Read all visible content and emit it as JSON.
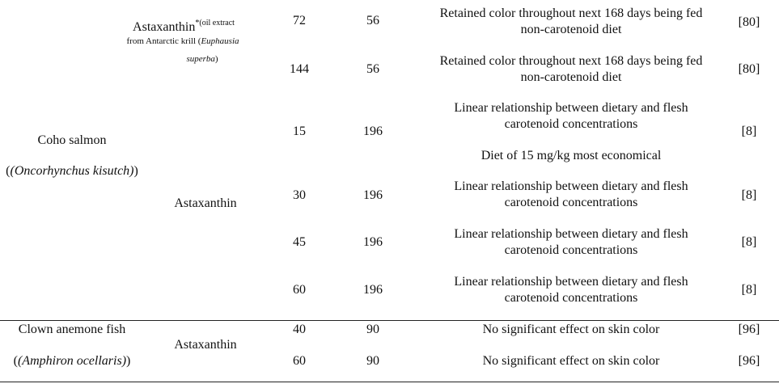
{
  "g1": {
    "species_line1": "Coho salmon",
    "species_line2": "(Oncorhynchus kisutch)",
    "pig1_name": "Astaxanthin",
    "pig1_sup": "*(oil extract",
    "pig1_note1": "from Antarctic krill (",
    "pig1_note1_it": "Euphausia",
    "pig1_note2_it": "superba",
    "pig1_note2_tail": ")",
    "pig2_name": "Astaxanthin",
    "rows": [
      {
        "dose": "72",
        "days": "56",
        "res1": "Retained color throughout next 168 days being fed",
        "res2": "non-carotenoid diet",
        "ref": "[80]"
      },
      {
        "dose": "144",
        "days": "56",
        "res1": "Retained color throughout next 168 days being fed",
        "res2": "non-carotenoid diet",
        "ref": "[80]"
      },
      {
        "dose": "15",
        "days": "196",
        "res1": "Linear relationship between dietary and flesh",
        "res2": "carotenoid concentrations",
        "res3": "Diet of 15 mg/kg most economical",
        "ref": "[8]"
      },
      {
        "dose": "30",
        "days": "196",
        "res1": "Linear relationship between dietary and flesh",
        "res2": "carotenoid concentrations",
        "ref": "[8]"
      },
      {
        "dose": "45",
        "days": "196",
        "res1": "Linear relationship between dietary and flesh",
        "res2": "carotenoid concentrations",
        "ref": "[8]"
      },
      {
        "dose": "60",
        "days": "196",
        "res1": "Linear relationship between dietary and flesh",
        "res2": "carotenoid concentrations",
        "ref": "[8]"
      }
    ]
  },
  "g2": {
    "species_line1": "Clown anemone fish",
    "species_line2": "(Amphiron ocellaris)",
    "pigment": "Astaxanthin",
    "rows": [
      {
        "dose": "40",
        "days": "90",
        "res": "No significant effect on skin color",
        "ref": "[96]"
      },
      {
        "dose": "60",
        "days": "90",
        "res": "No significant effect on skin color",
        "ref": "[96]"
      }
    ]
  }
}
